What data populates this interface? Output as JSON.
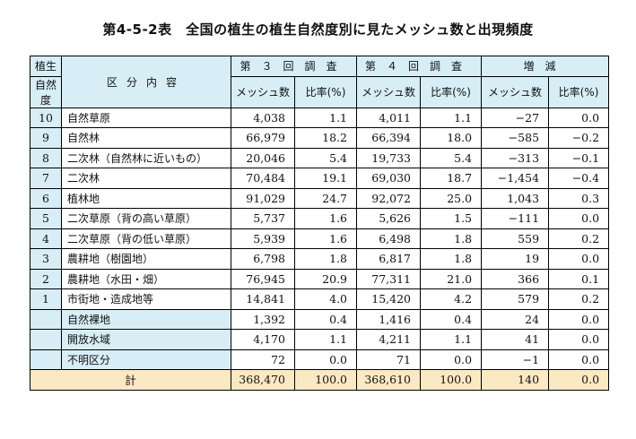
{
  "title": "第4-5-2表　全国の植生の植生自然度別に見たメッシュ数と出現頻度",
  "header": {
    "degree_line1": "植生",
    "degree_line2": "自然度",
    "category": "区分内容",
    "survey3": "第３回調査",
    "survey4": "第４回調査",
    "change": "増減",
    "mesh": "メッシュ数",
    "ratio": "比率(%)"
  },
  "rows": [
    {
      "deg": "10",
      "cat": "自然草原",
      "m3": "4,038",
      "r3": "1.1",
      "m4": "4,011",
      "r4": "1.1",
      "dm": "−27",
      "dr": "0.0"
    },
    {
      "deg": "9",
      "cat": "自然林",
      "m3": "66,979",
      "r3": "18.2",
      "m4": "66,394",
      "r4": "18.0",
      "dm": "−585",
      "dr": "−0.2"
    },
    {
      "deg": "8",
      "cat": "二次林（自然林に近いもの）",
      "m3": "20,046",
      "r3": "5.4",
      "m4": "19,733",
      "r4": "5.4",
      "dm": "−313",
      "dr": "−0.1"
    },
    {
      "deg": "7",
      "cat": "二次林",
      "m3": "70,484",
      "r3": "19.1",
      "m4": "69,030",
      "r4": "18.7",
      "dm": "−1,454",
      "dr": "−0.4"
    },
    {
      "deg": "6",
      "cat": "植林地",
      "m3": "91,029",
      "r3": "24.7",
      "m4": "92,072",
      "r4": "25.0",
      "dm": "1,043",
      "dr": "0.3"
    },
    {
      "deg": "5",
      "cat": "二次草原（背の高い草原）",
      "m3": "5,737",
      "r3": "1.6",
      "m4": "5,626",
      "r4": "1.5",
      "dm": "−111",
      "dr": "0.0"
    },
    {
      "deg": "4",
      "cat": "二次草原（背の低い草原）",
      "m3": "5,939",
      "r3": "1.6",
      "m4": "6,498",
      "r4": "1.8",
      "dm": "559",
      "dr": "0.2"
    },
    {
      "deg": "3",
      "cat": "農耕地（樹園地）",
      "m3": "6,798",
      "r3": "1.8",
      "m4": "6,817",
      "r4": "1.8",
      "dm": "19",
      "dr": "0.0"
    },
    {
      "deg": "2",
      "cat": "農耕地（水田・畑）",
      "m3": "76,945",
      "r3": "20.9",
      "m4": "77,311",
      "r4": "21.0",
      "dm": "366",
      "dr": "0.1"
    },
    {
      "deg": "1",
      "cat": "市街地・造成地等",
      "m3": "14,841",
      "r3": "4.0",
      "m4": "15,420",
      "r4": "4.2",
      "dm": "579",
      "dr": "0.2"
    }
  ],
  "other_rows": [
    {
      "cat": "自然裸地",
      "m3": "1,392",
      "r3": "0.4",
      "m4": "1,416",
      "r4": "0.4",
      "dm": "24",
      "dr": "0.0"
    },
    {
      "cat": "開放水域",
      "m3": "4,170",
      "r3": "1.1",
      "m4": "4,211",
      "r4": "1.1",
      "dm": "41",
      "dr": "0.0"
    },
    {
      "cat": "不明区分",
      "m3": "72",
      "r3": "0.0",
      "m4": "71",
      "r4": "0.0",
      "dm": "−1",
      "dr": "0.0"
    }
  ],
  "total": {
    "label": "計",
    "m3": "368,470",
    "r3": "100.0",
    "m4": "368,610",
    "r4": "100.0",
    "dm": "140",
    "dr": "0.0"
  }
}
